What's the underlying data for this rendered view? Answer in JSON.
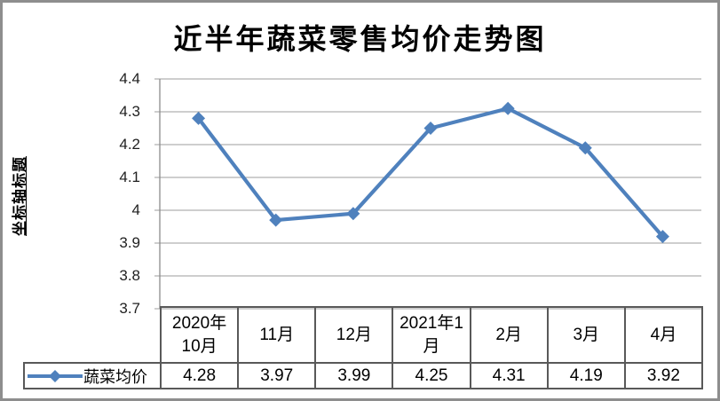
{
  "chart_data": {
    "type": "line",
    "title": "近半年蔬菜零售均价走势图",
    "ylabel": "坐标轴标题",
    "xlabel": "",
    "categories": [
      "2020年10月",
      "11月",
      "12月",
      "2021年1月",
      "2月",
      "3月",
      "4月"
    ],
    "series": [
      {
        "name": "蔬菜均价",
        "values": [
          4.28,
          3.97,
          3.99,
          4.25,
          4.31,
          4.19,
          3.92
        ],
        "value_labels": [
          "4.28",
          "3.97",
          "3.99",
          "4.25",
          "4.31",
          "4.19",
          "3.92"
        ],
        "color": "#4F81BD",
        "marker": "diamond"
      }
    ],
    "ylim": [
      3.7,
      4.4
    ],
    "ytick_labels": [
      "4.4",
      "4.3",
      "4.2",
      "4.1",
      "4",
      "3.9",
      "3.8",
      "3.7"
    ],
    "grid": "horizontal",
    "gridline_color": "#9c9c9c",
    "axis_line_color": "#8c8c8c",
    "legend_position": "data-table-left",
    "data_table_shown": true
  },
  "frame": {
    "background": "#ffffff",
    "border_color": "#8e8e8e"
  }
}
